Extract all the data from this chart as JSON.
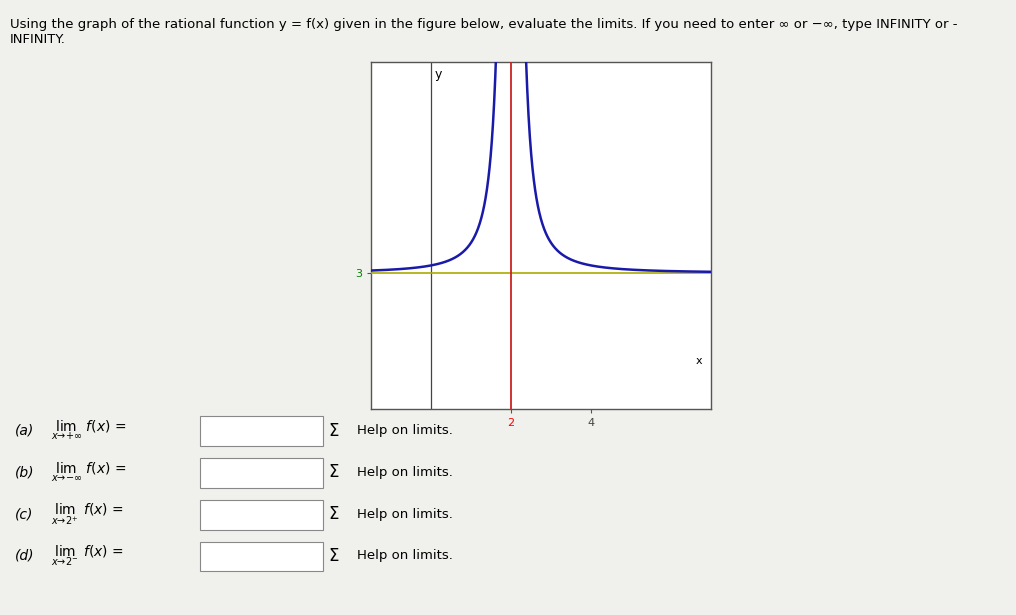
{
  "title_text": "Using the graph of the rational function y = f(x) given in the figure below, evaluate the limits. If you need to enter ∞ or −∞, type INFINITY or -\nINFINITY.",
  "graph_ylabel": "y",
  "graph_xlabel": "x",
  "asymptote_x": 2,
  "asymptote_y": 3,
  "x_extra_tick": 4,
  "curve_color": "#1a1aaa",
  "asymptote_v_color": "#cc2222",
  "asymptote_h_color": "#aaaa00",
  "axis_color": "#444444",
  "background_color": "#f0f0ec",
  "graph_bg": "#ffffff",
  "graph_border_color": "#555555",
  "xlim": [
    -1.5,
    7
  ],
  "ylim": [
    -1.5,
    10
  ],
  "q_labels": [
    "(a)",
    "(b)",
    "(c)",
    "(d)"
  ],
  "q_lim_texts": [
    "$\\lim_{x\\to+\\infty}$",
    "$\\lim_{x\\to-\\infty}$",
    "$\\lim_{x\\to 2^+}$",
    "$\\lim_{x\\to 2^-}$"
  ],
  "q_help": "Help on limits.",
  "fig_width": 10.16,
  "fig_height": 6.15,
  "dpi": 100
}
